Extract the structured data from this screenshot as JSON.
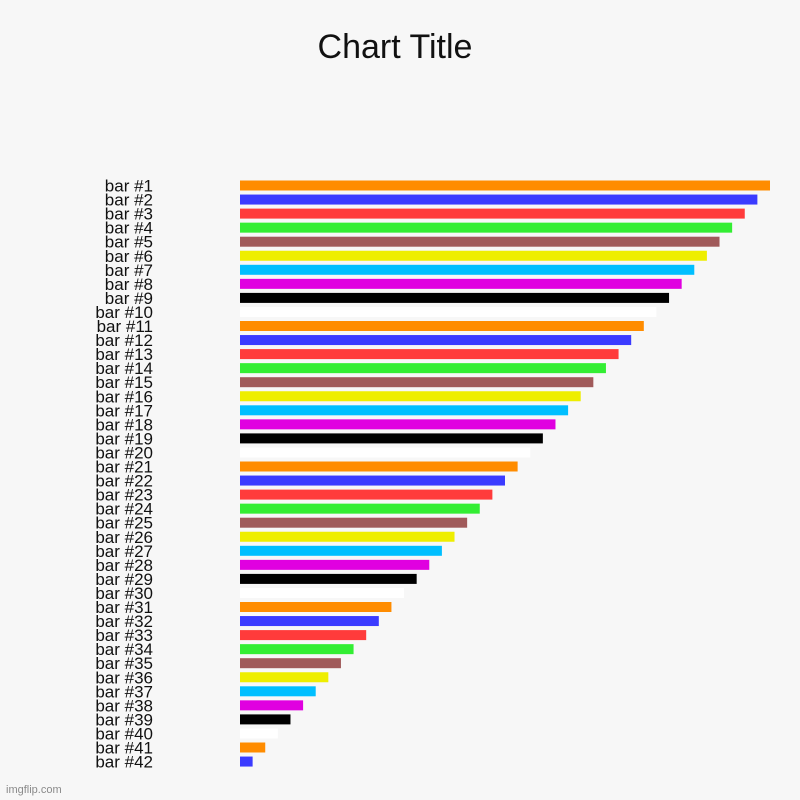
{
  "chart_data": {
    "type": "bar",
    "orientation": "horizontal",
    "title": "Chart Title",
    "grid": false,
    "legend": "none",
    "categories": [
      "bar #1",
      "bar #2",
      "bar #3",
      "bar #4",
      "bar #5",
      "bar #6",
      "bar #7",
      "bar #8",
      "bar #9",
      "bar #10",
      "bar #11",
      "bar #12",
      "bar #13",
      "bar #14",
      "bar #15",
      "bar #16",
      "bar #17",
      "bar #18",
      "bar #19",
      "bar #20",
      "bar #21",
      "bar #22",
      "bar #23",
      "bar #24",
      "bar #25",
      "bar #26",
      "bar #27",
      "bar #28",
      "bar #29",
      "bar #30",
      "bar #31",
      "bar #32",
      "bar #33",
      "bar #34",
      "bar #35",
      "bar #36",
      "bar #37",
      "bar #38",
      "bar #39",
      "bar #40",
      "bar #41",
      "bar #42"
    ],
    "values": [
      42,
      41,
      40,
      39,
      38,
      37,
      36,
      35,
      34,
      33,
      32,
      31,
      30,
      29,
      28,
      27,
      26,
      25,
      24,
      23,
      22,
      21,
      20,
      19,
      18,
      17,
      16,
      15,
      14,
      13,
      12,
      11,
      10,
      9,
      8,
      7,
      6,
      5,
      4,
      3,
      2,
      1
    ],
    "xlim": [
      0,
      42
    ],
    "colors": [
      "#ff8c00",
      "#3b3bff",
      "#ff3b3b",
      "#33ee33",
      "#a05a5a",
      "#eeee00",
      "#00bfff",
      "#e000e0",
      "#000000",
      "#ffffff"
    ]
  },
  "watermark": "imgflip.com"
}
